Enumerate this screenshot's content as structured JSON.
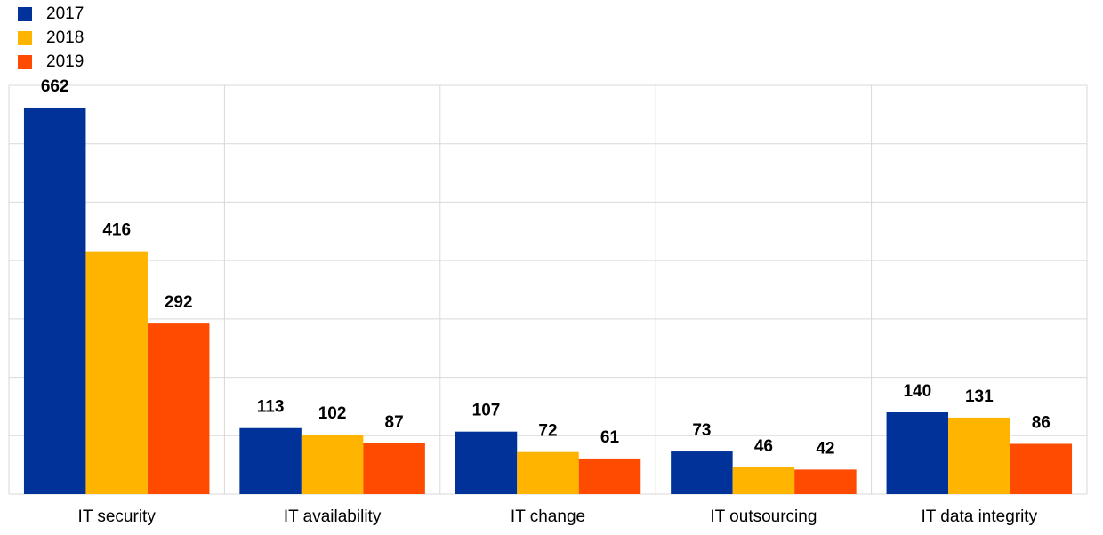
{
  "chart_data": {
    "type": "bar",
    "categories": [
      "IT security",
      "IT availability",
      "IT change",
      "IT outsourcing",
      "IT data integrity"
    ],
    "series": [
      {
        "name": "2017",
        "color": "#003299",
        "values": [
          662,
          113,
          107,
          73,
          140
        ]
      },
      {
        "name": "2018",
        "color": "#FFB400",
        "values": [
          416,
          102,
          72,
          46,
          131
        ]
      },
      {
        "name": "2019",
        "color": "#FF4B00",
        "values": [
          292,
          87,
          61,
          42,
          86
        ]
      }
    ],
    "ylim": [
      0,
      700
    ],
    "grid": true,
    "legend_position": "top-left",
    "data_labels": true
  }
}
